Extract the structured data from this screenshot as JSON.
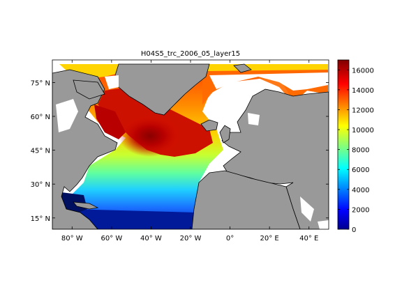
{
  "title": "H04S5_trc_2006_05_layer15",
  "map": {
    "lon_range": [
      -90,
      50
    ],
    "lat_range": [
      10,
      85
    ],
    "lon_ticks": [
      {
        "value": -80,
        "label": "80° W"
      },
      {
        "value": -60,
        "label": "60° W"
      },
      {
        "value": -40,
        "label": "40° W"
      },
      {
        "value": -20,
        "label": "20° W"
      },
      {
        "value": 0,
        "label": "0°"
      },
      {
        "value": 20,
        "label": "20° E"
      },
      {
        "value": 40,
        "label": "40° E"
      }
    ],
    "lat_ticks": [
      {
        "value": 15,
        "label": "15° N"
      },
      {
        "value": 30,
        "label": "30° N"
      },
      {
        "value": 45,
        "label": "45° N"
      },
      {
        "value": 60,
        "label": "60° N"
      },
      {
        "value": 75,
        "label": "75° N"
      }
    ],
    "land_color": "#999999",
    "missing_color": "#ffffff",
    "colormap": "jet"
  },
  "colorbar": {
    "min": 0,
    "max": 17000,
    "ticks": [
      {
        "value": 0,
        "label": "0"
      },
      {
        "value": 2000,
        "label": "2000"
      },
      {
        "value": 4000,
        "label": "4000"
      },
      {
        "value": 6000,
        "label": "6000"
      },
      {
        "value": 8000,
        "label": "8000"
      },
      {
        "value": 10000,
        "label": "10000"
      },
      {
        "value": 12000,
        "label": "12000"
      },
      {
        "value": 14000,
        "label": "14000"
      },
      {
        "value": 16000,
        "label": "16000"
      }
    ]
  }
}
